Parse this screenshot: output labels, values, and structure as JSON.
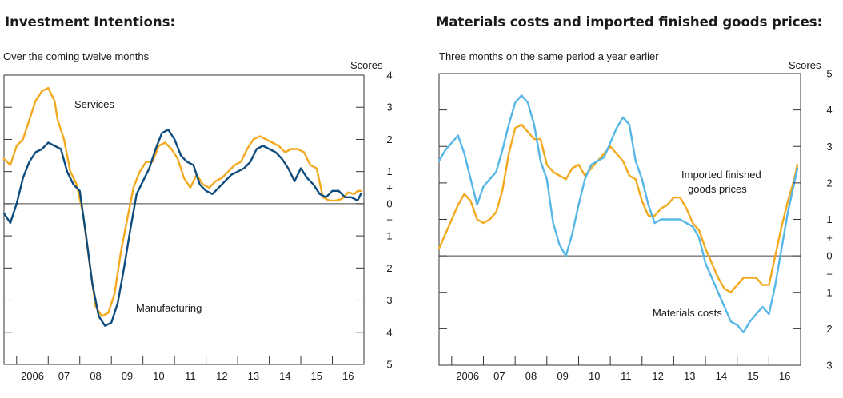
{
  "chart_data": [
    {
      "type": "line",
      "title": "Investment Intentions:",
      "subtitle": "Over the coming twelve months",
      "ylabel": "Scores",
      "xlim": [
        2005.5,
        2016.9
      ],
      "ylim": [
        -5,
        4
      ],
      "x_ticks": [
        "2006",
        "07",
        "08",
        "09",
        "10",
        "11",
        "12",
        "13",
        "14",
        "15",
        "16"
      ],
      "y_ticks": [
        "4",
        "3",
        "2",
        "1",
        "+",
        "0",
        "−",
        "1",
        "2",
        "3",
        "4",
        "5"
      ],
      "y_tick_values": [
        4,
        3,
        2,
        1,
        0.5,
        0,
        -0.5,
        -1,
        -2,
        -3,
        -4,
        -5
      ],
      "y_tick_labels": [
        {
          "label": "4",
          "y": 4
        },
        {
          "label": "3",
          "y": 3
        },
        {
          "label": "2",
          "y": 2
        },
        {
          "label": "1",
          "y": 1
        },
        {
          "label": "+",
          "y": 0.5
        },
        {
          "label": "0",
          "y": 0
        },
        {
          "label": "−",
          "y": -0.5
        },
        {
          "label": "1",
          "y": -1
        },
        {
          "label": "2",
          "y": -2
        },
        {
          "label": "3",
          "y": -3
        },
        {
          "label": "4",
          "y": -4
        },
        {
          "label": "5",
          "y": -5
        }
      ],
      "series": [
        {
          "name": "Services",
          "color": "#f2a91d",
          "x": [
            2005.5,
            2005.7,
            2005.9,
            2006.1,
            2006.3,
            2006.5,
            2006.7,
            2006.9,
            2007.1,
            2007.2,
            2007.4,
            2007.6,
            2007.8,
            2008.0,
            2008.2,
            2008.4,
            2008.6,
            2008.8,
            2009.0,
            2009.2,
            2009.4,
            2009.6,
            2009.8,
            2010.0,
            2010.2,
            2010.4,
            2010.6,
            2010.8,
            2011.0,
            2011.2,
            2011.4,
            2011.6,
            2011.8,
            2012.0,
            2012.2,
            2012.4,
            2012.6,
            2012.8,
            2013.0,
            2013.2,
            2013.4,
            2013.6,
            2013.8,
            2014.0,
            2014.2,
            2014.4,
            2014.6,
            2014.8,
            2015.0,
            2015.2,
            2015.4,
            2015.6,
            2015.8,
            2016.0,
            2016.2,
            2016.4,
            2016.6,
            2016.7,
            2016.8
          ],
          "y": [
            1.4,
            1.2,
            1.8,
            2.0,
            2.6,
            3.2,
            3.5,
            3.6,
            3.2,
            2.6,
            2.0,
            1.0,
            0.6,
            -0.3,
            -1.8,
            -3.2,
            -3.5,
            -3.4,
            -2.8,
            -1.5,
            -0.5,
            0.5,
            1.0,
            1.3,
            1.3,
            1.8,
            1.9,
            1.7,
            1.4,
            0.8,
            0.5,
            0.9,
            0.6,
            0.5,
            0.7,
            0.8,
            1.0,
            1.2,
            1.3,
            1.7,
            2.0,
            2.1,
            2.0,
            1.9,
            1.8,
            1.6,
            1.7,
            1.7,
            1.6,
            1.2,
            1.1,
            0.2,
            0.1,
            0.1,
            0.15,
            0.35,
            0.3,
            0.4,
            0.4
          ]
        },
        {
          "name": "Manufacturing",
          "color": "#0e4c7d",
          "x": [
            2005.5,
            2005.7,
            2005.9,
            2006.1,
            2006.3,
            2006.5,
            2006.7,
            2006.9,
            2007.1,
            2007.3,
            2007.5,
            2007.7,
            2007.9,
            2008.1,
            2008.3,
            2008.5,
            2008.7,
            2008.9,
            2009.1,
            2009.3,
            2009.5,
            2009.7,
            2009.9,
            2010.1,
            2010.3,
            2010.5,
            2010.7,
            2010.9,
            2011.1,
            2011.3,
            2011.5,
            2011.7,
            2011.9,
            2012.1,
            2012.3,
            2012.5,
            2012.7,
            2012.9,
            2013.1,
            2013.3,
            2013.5,
            2013.7,
            2013.9,
            2014.1,
            2014.3,
            2014.5,
            2014.7,
            2014.9,
            2015.1,
            2015.3,
            2015.5,
            2015.7,
            2015.9,
            2016.1,
            2016.3,
            2016.5,
            2016.7,
            2016.8
          ],
          "y": [
            -0.3,
            -0.6,
            0.0,
            0.8,
            1.3,
            1.6,
            1.7,
            1.9,
            1.8,
            1.7,
            1.0,
            0.6,
            0.4,
            -1.0,
            -2.5,
            -3.5,
            -3.8,
            -3.7,
            -3.1,
            -2.0,
            -0.8,
            0.3,
            0.7,
            1.1,
            1.7,
            2.2,
            2.3,
            2.0,
            1.5,
            1.3,
            1.2,
            0.6,
            0.4,
            0.3,
            0.5,
            0.7,
            0.9,
            1.0,
            1.1,
            1.3,
            1.7,
            1.8,
            1.7,
            1.6,
            1.4,
            1.1,
            0.7,
            1.1,
            0.8,
            0.6,
            0.3,
            0.2,
            0.4,
            0.4,
            0.2,
            0.2,
            0.1,
            0.3
          ]
        }
      ]
    },
    {
      "type": "line",
      "title": "Materials costs and imported finished goods prices:",
      "subtitle": "Three months on the same period a year earlier",
      "ylabel": "Scores",
      "xlim": [
        2005.5,
        2016.9
      ],
      "ylim": [
        -3,
        5
      ],
      "x_ticks": [
        "2006",
        "07",
        "08",
        "09",
        "10",
        "11",
        "12",
        "13",
        "14",
        "15",
        "16"
      ],
      "y_ticks": [
        "5",
        "4",
        "3",
        "2",
        "1",
        "+",
        "0",
        "−",
        "1",
        "2",
        "3"
      ],
      "y_tick_values": [
        5,
        4,
        3,
        2,
        1,
        0.5,
        0,
        -0.5,
        -1,
        -2,
        -3
      ],
      "y_tick_labels": [
        {
          "label": "5",
          "y": 5
        },
        {
          "label": "4",
          "y": 4
        },
        {
          "label": "3",
          "y": 3
        },
        {
          "label": "2",
          "y": 2
        },
        {
          "label": "1",
          "y": 1
        },
        {
          "label": "+",
          "y": 0.5
        },
        {
          "label": "0",
          "y": 0
        },
        {
          "label": "−",
          "y": -0.5
        },
        {
          "label": "1",
          "y": -1
        },
        {
          "label": "2",
          "y": -2
        },
        {
          "label": "3",
          "y": -3
        }
      ],
      "series": [
        {
          "name": "Imported finished goods prices",
          "color": "#f2a91d",
          "x": [
            2005.5,
            2005.7,
            2005.9,
            2006.1,
            2006.3,
            2006.5,
            2006.7,
            2006.9,
            2007.1,
            2007.3,
            2007.5,
            2007.7,
            2007.9,
            2008.1,
            2008.3,
            2008.5,
            2008.7,
            2008.9,
            2009.1,
            2009.3,
            2009.5,
            2009.7,
            2009.9,
            2010.1,
            2010.3,
            2010.5,
            2010.7,
            2010.9,
            2011.1,
            2011.3,
            2011.5,
            2011.7,
            2011.9,
            2012.1,
            2012.3,
            2012.5,
            2012.7,
            2012.9,
            2013.1,
            2013.3,
            2013.5,
            2013.7,
            2013.9,
            2014.1,
            2014.3,
            2014.5,
            2014.7,
            2014.9,
            2015.1,
            2015.3,
            2015.5,
            2015.7,
            2015.9,
            2016.1,
            2016.3,
            2016.5,
            2016.7,
            2016.8
          ],
          "y": [
            0.2,
            0.6,
            1.0,
            1.4,
            1.7,
            1.5,
            1.0,
            0.9,
            1.0,
            1.2,
            1.8,
            2.8,
            3.5,
            3.6,
            3.4,
            3.2,
            3.2,
            2.5,
            2.3,
            2.2,
            2.1,
            2.4,
            2.5,
            2.2,
            2.4,
            2.6,
            2.8,
            3.0,
            2.8,
            2.6,
            2.2,
            2.1,
            1.5,
            1.1,
            1.1,
            1.3,
            1.4,
            1.6,
            1.6,
            1.3,
            0.9,
            0.7,
            0.2,
            -0.2,
            -0.6,
            -0.9,
            -1.0,
            -0.8,
            -0.6,
            -0.6,
            -0.6,
            -0.8,
            -0.8,
            0.0,
            0.8,
            1.5,
            2.1,
            2.5
          ]
        },
        {
          "name": "Materials costs",
          "color": "#56b7e6",
          "x": [
            2005.5,
            2005.7,
            2005.9,
            2006.1,
            2006.3,
            2006.5,
            2006.7,
            2006.9,
            2007.1,
            2007.3,
            2007.5,
            2007.7,
            2007.9,
            2008.1,
            2008.3,
            2008.5,
            2008.7,
            2008.9,
            2009.1,
            2009.3,
            2009.5,
            2009.7,
            2009.9,
            2010.1,
            2010.3,
            2010.5,
            2010.7,
            2010.9,
            2011.1,
            2011.3,
            2011.5,
            2011.7,
            2011.9,
            2012.1,
            2012.3,
            2012.5,
            2012.7,
            2012.9,
            2013.1,
            2013.3,
            2013.5,
            2013.7,
            2013.9,
            2014.1,
            2014.3,
            2014.5,
            2014.7,
            2014.9,
            2015.1,
            2015.3,
            2015.5,
            2015.7,
            2015.9,
            2016.1,
            2016.3,
            2016.5,
            2016.7,
            2016.8
          ],
          "y": [
            2.6,
            2.9,
            3.1,
            3.3,
            2.8,
            2.1,
            1.4,
            1.9,
            2.1,
            2.3,
            2.9,
            3.6,
            4.2,
            4.4,
            4.2,
            3.6,
            2.6,
            2.1,
            0.9,
            0.3,
            0.0,
            0.6,
            1.4,
            2.1,
            2.5,
            2.6,
            2.7,
            3.1,
            3.5,
            3.8,
            3.6,
            2.6,
            2.1,
            1.4,
            0.9,
            1.0,
            1.0,
            1.0,
            1.0,
            0.9,
            0.8,
            0.5,
            -0.2,
            -0.6,
            -1.0,
            -1.4,
            -1.8,
            -1.9,
            -2.1,
            -1.8,
            -1.6,
            -1.4,
            -1.6,
            -0.8,
            0.2,
            1.2,
            2.0,
            2.4
          ]
        }
      ]
    }
  ],
  "left": {
    "title": "Investment Intentions:",
    "subtitle": "Over the coming twelve months",
    "units": "Scores",
    "label_services": "Services",
    "label_manufacturing": "Manufacturing"
  },
  "right": {
    "title": "Materials costs and imported finished goods prices:",
    "subtitle": "Three months on the same period a year earlier",
    "units": "Scores",
    "label_imported_1": "Imported finished",
    "label_imported_2": "goods prices",
    "label_materials": "Materials costs"
  },
  "colors": {
    "services": "#f2a91d",
    "manufacturing": "#0e4c7d",
    "imported": "#f2a91d",
    "materials": "#56b7e6",
    "frame": "#333333"
  }
}
